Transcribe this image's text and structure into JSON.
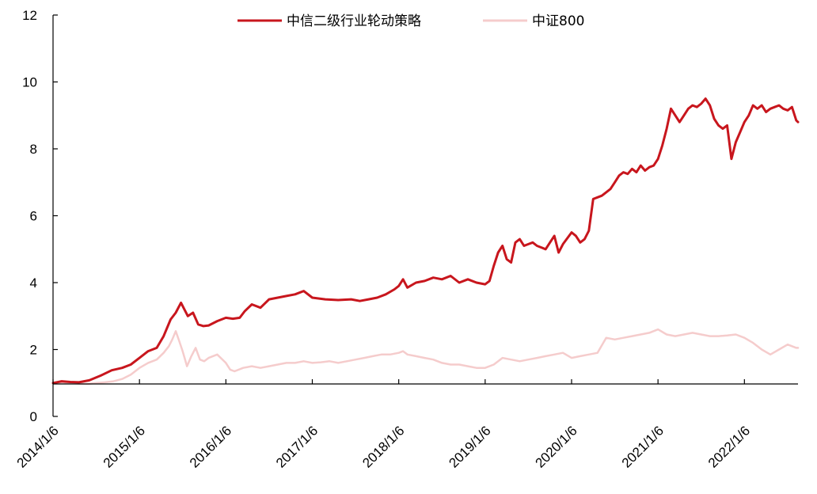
{
  "chart_data": {
    "type": "line",
    "title": "",
    "xlabel": "",
    "ylabel": "",
    "x_ticks": [
      "2014/1/6",
      "2015/1/6",
      "2016/1/6",
      "2017/1/6",
      "2018/1/6",
      "2019/1/6",
      "2020/1/6",
      "2021/1/6",
      "2022/1/6"
    ],
    "y_ticks": [
      "0",
      "2",
      "4",
      "6",
      "8",
      "10",
      "12"
    ],
    "ylim": [
      0,
      12
    ],
    "xlim": [
      2014.0,
      2022.62
    ],
    "grid": false,
    "legend_position": "top-center",
    "series": [
      {
        "name": "中信二级行业轮动策略",
        "color": "#C8161D",
        "x": [
          2014.0,
          2014.1,
          2014.2,
          2014.3,
          2014.42,
          2014.55,
          2014.68,
          2014.8,
          2014.9,
          2015.0,
          2015.1,
          2015.2,
          2015.28,
          2015.36,
          2015.42,
          2015.48,
          2015.52,
          2015.56,
          2015.62,
          2015.68,
          2015.74,
          2015.8,
          2015.9,
          2016.0,
          2016.08,
          2016.16,
          2016.22,
          2016.3,
          2016.4,
          2016.5,
          2016.6,
          2016.7,
          2016.8,
          2016.9,
          2017.0,
          2017.15,
          2017.3,
          2017.45,
          2017.55,
          2017.65,
          2017.75,
          2017.85,
          2017.95,
          2018.0,
          2018.05,
          2018.1,
          2018.2,
          2018.3,
          2018.4,
          2018.5,
          2018.6,
          2018.7,
          2018.8,
          2018.9,
          2019.0,
          2019.05,
          2019.1,
          2019.15,
          2019.2,
          2019.25,
          2019.3,
          2019.35,
          2019.4,
          2019.45,
          2019.5,
          2019.55,
          2019.6,
          2019.65,
          2019.7,
          2019.75,
          2019.8,
          2019.85,
          2019.9,
          2020.0,
          2020.05,
          2020.1,
          2020.15,
          2020.2,
          2020.25,
          2020.3,
          2020.35,
          2020.4,
          2020.45,
          2020.5,
          2020.55,
          2020.6,
          2020.65,
          2020.7,
          2020.75,
          2020.8,
          2020.85,
          2020.9,
          2020.95,
          2021.0,
          2021.05,
          2021.1,
          2021.15,
          2021.2,
          2021.25,
          2021.3,
          2021.35,
          2021.4,
          2021.45,
          2021.5,
          2021.55,
          2021.6,
          2021.65,
          2021.7,
          2021.75,
          2021.8,
          2021.85,
          2021.9,
          2021.95,
          2022.0,
          2022.05,
          2022.1,
          2022.15,
          2022.2,
          2022.25,
          2022.3,
          2022.35,
          2022.4,
          2022.45,
          2022.5,
          2022.55,
          2022.6,
          2022.62
        ],
        "y": [
          1.0,
          1.05,
          1.03,
          1.02,
          1.08,
          1.22,
          1.38,
          1.45,
          1.55,
          1.75,
          1.95,
          2.05,
          2.4,
          2.9,
          3.1,
          3.4,
          3.2,
          3.0,
          3.1,
          2.75,
          2.7,
          2.72,
          2.85,
          2.95,
          2.92,
          2.95,
          3.15,
          3.35,
          3.25,
          3.5,
          3.55,
          3.6,
          3.65,
          3.75,
          3.55,
          3.5,
          3.48,
          3.5,
          3.45,
          3.5,
          3.55,
          3.65,
          3.8,
          3.9,
          4.1,
          3.85,
          4.0,
          4.05,
          4.15,
          4.1,
          4.2,
          4.0,
          4.1,
          4.0,
          3.95,
          4.05,
          4.5,
          4.9,
          5.1,
          4.7,
          4.6,
          5.2,
          5.3,
          5.1,
          5.15,
          5.2,
          5.1,
          5.05,
          5.0,
          5.2,
          5.4,
          4.9,
          5.15,
          5.5,
          5.4,
          5.2,
          5.3,
          5.55,
          6.5,
          6.55,
          6.6,
          6.7,
          6.8,
          7.0,
          7.2,
          7.3,
          7.25,
          7.4,
          7.3,
          7.5,
          7.35,
          7.45,
          7.5,
          7.7,
          8.1,
          8.6,
          9.2,
          9.0,
          8.8,
          9.0,
          9.2,
          9.3,
          9.25,
          9.35,
          9.5,
          9.3,
          8.9,
          8.7,
          8.6,
          8.7,
          7.7,
          8.2,
          8.5,
          8.8,
          9.0,
          9.3,
          9.2,
          9.3,
          9.1,
          9.2,
          9.25,
          9.3,
          9.2,
          9.15,
          9.25,
          8.85,
          8.8
        ],
        "linewidth": 3
      },
      {
        "name": "中证800",
        "color": "#F5CCCC",
        "x": [
          2014.0,
          2014.1,
          2014.2,
          2014.3,
          2014.4,
          2014.5,
          2014.6,
          2014.7,
          2014.8,
          2014.9,
          2015.0,
          2015.1,
          2015.2,
          2015.28,
          2015.34,
          2015.38,
          2015.42,
          2015.46,
          2015.5,
          2015.55,
          2015.6,
          2015.65,
          2015.7,
          2015.75,
          2015.8,
          2015.9,
          2016.0,
          2016.05,
          2016.1,
          2016.2,
          2016.3,
          2016.4,
          2016.5,
          2016.6,
          2016.7,
          2016.8,
          2016.9,
          2017.0,
          2017.1,
          2017.2,
          2017.3,
          2017.4,
          2017.5,
          2017.6,
          2017.7,
          2017.8,
          2017.9,
          2018.0,
          2018.05,
          2018.1,
          2018.2,
          2018.3,
          2018.4,
          2018.5,
          2018.6,
          2018.7,
          2018.8,
          2018.9,
          2019.0,
          2019.1,
          2019.2,
          2019.3,
          2019.4,
          2019.5,
          2019.6,
          2019.7,
          2019.8,
          2019.9,
          2020.0,
          2020.1,
          2020.2,
          2020.3,
          2020.4,
          2020.5,
          2020.6,
          2020.7,
          2020.8,
          2020.9,
          2021.0,
          2021.1,
          2021.2,
          2021.3,
          2021.4,
          2021.5,
          2021.6,
          2021.7,
          2021.8,
          2021.9,
          2022.0,
          2022.1,
          2022.2,
          2022.3,
          2022.4,
          2022.5,
          2022.55,
          2022.6,
          2022.62
        ],
        "y": [
          1.0,
          1.02,
          1.0,
          0.98,
          0.97,
          1.0,
          1.02,
          1.05,
          1.12,
          1.25,
          1.45,
          1.6,
          1.7,
          1.9,
          2.1,
          2.3,
          2.55,
          2.25,
          1.95,
          1.5,
          1.8,
          2.05,
          1.7,
          1.65,
          1.75,
          1.85,
          1.6,
          1.4,
          1.35,
          1.45,
          1.5,
          1.45,
          1.5,
          1.55,
          1.6,
          1.6,
          1.65,
          1.6,
          1.62,
          1.65,
          1.6,
          1.65,
          1.7,
          1.75,
          1.8,
          1.85,
          1.85,
          1.9,
          1.95,
          1.85,
          1.8,
          1.75,
          1.7,
          1.6,
          1.55,
          1.55,
          1.5,
          1.45,
          1.45,
          1.55,
          1.75,
          1.7,
          1.65,
          1.7,
          1.75,
          1.8,
          1.85,
          1.9,
          1.75,
          1.8,
          1.85,
          1.9,
          2.35,
          2.3,
          2.35,
          2.4,
          2.45,
          2.5,
          2.6,
          2.45,
          2.4,
          2.45,
          2.5,
          2.45,
          2.4,
          2.4,
          2.42,
          2.45,
          2.35,
          2.2,
          2.0,
          1.85,
          2.0,
          2.15,
          2.1,
          2.05,
          2.05
        ],
        "linewidth": 2.5
      }
    ]
  }
}
